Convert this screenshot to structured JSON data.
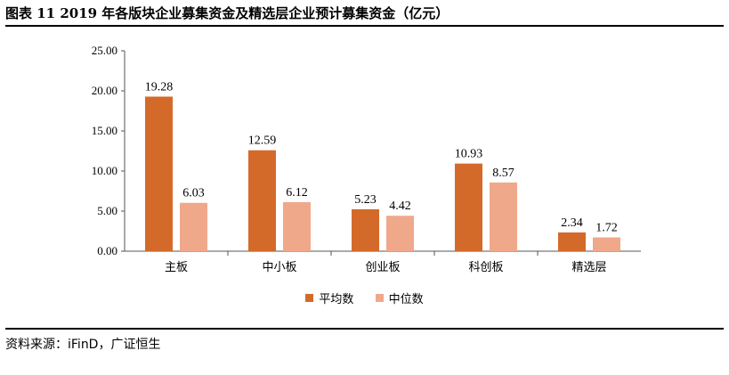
{
  "figure": {
    "title": "图表 11 2019 年各版块企业募集资金及精选层企业预计募集资金（亿元）",
    "source": "资料来源：iFinD，广证恒生"
  },
  "chart_data": {
    "type": "bar",
    "categories": [
      "主板",
      "中小板",
      "创业板",
      "科创板",
      "精选层"
    ],
    "series": [
      {
        "name": "平均数",
        "color": "#d46a2a",
        "values": [
          19.28,
          12.59,
          5.23,
          10.93,
          2.34
        ]
      },
      {
        "name": "中位数",
        "color": "#f0a88a",
        "values": [
          6.03,
          6.12,
          4.42,
          8.57,
          1.72
        ]
      }
    ],
    "ylim": [
      0,
      25
    ],
    "yticks": [
      "0.00",
      "5.00",
      "10.00",
      "15.00",
      "20.00",
      "25.00"
    ],
    "grid": false,
    "legend_position": "bottom"
  }
}
